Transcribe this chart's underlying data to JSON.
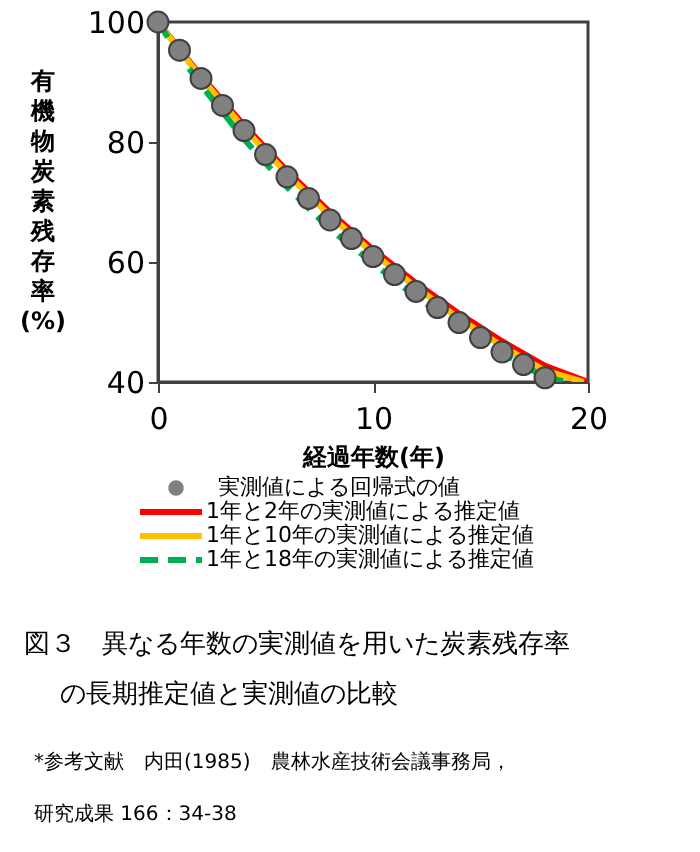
{
  "chart_data": {
    "type": "line",
    "title": "図３　異なる年数の実測値を用いた炭素残存率の長期推定値と実測値の比較",
    "xlabel": "経過年数(年)",
    "ylabel": "有機物炭素残存率(%)",
    "xlim": [
      0,
      20
    ],
    "xticks": [
      0,
      10,
      20
    ],
    "ylim": [
      40,
      100
    ],
    "yticks": [
      40,
      60,
      80,
      100
    ],
    "grid": false,
    "legend": "bottom",
    "annotations": [
      "*参考文献　内田(1985)　農林水産技術会議事務局，研究成果 166：34-38"
    ],
    "series": [
      {
        "name": "1年と2年の実測値による推定値",
        "color": "#ff0000",
        "line_style": "solid",
        "x": [
          0,
          2,
          4,
          6,
          8,
          10,
          12,
          14,
          16,
          18,
          20
        ],
        "values": [
          100,
          91,
          82.8,
          75.2,
          68.3,
          62.1,
          56.5,
          51.4,
          46.8,
          42.7,
          40
        ]
      },
      {
        "name": "1年と10年の実測値による推定値",
        "color": "#ffc000",
        "line_style": "solid",
        "x": [
          0,
          2,
          4,
          6,
          8,
          10,
          12,
          14,
          16,
          18,
          19.8
        ],
        "values": [
          100,
          90.7,
          82.3,
          74.7,
          67.7,
          61.5,
          55.8,
          50.6,
          46,
          41.9,
          40
        ]
      },
      {
        "name": "1年と18年の実測値による推定値",
        "color": "#00b050",
        "line_style": "dashed",
        "x": [
          0,
          1,
          2,
          4,
          6,
          8,
          10,
          12,
          14,
          16,
          18,
          19
        ],
        "values": [
          100,
          94.5,
          89.5,
          80.5,
          72.5,
          65.5,
          59.8,
          54.2,
          49.3,
          44.8,
          40.8,
          40
        ]
      },
      {
        "name": "実測値による回帰式の値",
        "type": "scatter",
        "marker": "circle",
        "color": "#808080",
        "x": [
          0,
          1,
          2,
          3,
          4,
          5,
          6,
          7,
          8,
          9,
          10,
          11,
          12,
          13,
          14,
          15,
          16,
          17,
          18
        ],
        "values": [
          100,
          95.3,
          90.6,
          86.1,
          81.9,
          77.9,
          74.2,
          70.6,
          67,
          63.9,
          60.9,
          57.9,
          55.1,
          52.4,
          49.9,
          47.4,
          45,
          42.9,
          40.7
        ]
      }
    ]
  }
}
